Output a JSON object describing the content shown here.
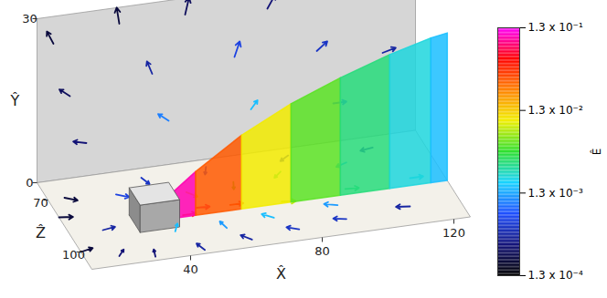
{
  "chart_data": {
    "type": "vector_field",
    "x_label": "X̂",
    "y_label": "Ŷ",
    "z_label": "Ẑ",
    "xlim": [
      10,
      125
    ],
    "ylim": [
      0,
      30
    ],
    "zlim": [
      60,
      110
    ],
    "xticks": [
      40,
      80,
      120
    ],
    "yticks": [
      0,
      30
    ],
    "zticks": [
      70,
      100
    ],
    "colorbar": {
      "label": "Ê",
      "log": true,
      "range": [
        0.00013,
        0.13
      ],
      "ticks": [
        {
          "value": 0.00013,
          "label": "1.3 x 10⁻⁴"
        },
        {
          "value": 0.0013,
          "label": "1.3 x 10⁻³"
        },
        {
          "value": 0.013,
          "label": "1.3 x 10⁻²"
        },
        {
          "value": 0.13,
          "label": "1.3 x 10⁻¹"
        }
      ]
    },
    "obstacle": {
      "x": [
        30,
        42
      ],
      "y": [
        0,
        5
      ],
      "z": [
        84,
        94
      ]
    },
    "slice": {
      "z": 89,
      "x": [
        42,
        55,
        70,
        85,
        100,
        115,
        125
      ],
      "top": [
        5,
        11,
        16,
        20,
        23,
        26,
        27
      ],
      "E": [
        0.1,
        0.03,
        0.01,
        0.005,
        0.003,
        0.002,
        0.0015
      ]
    },
    "vectors": {
      "x": [
        10,
        10,
        15,
        20,
        30,
        45,
        60,
        75,
        90,
        110,
        40,
        55,
        70,
        90,
        45,
        50,
        60,
        75,
        95,
        115,
        50,
        65,
        80,
        100,
        30,
        40,
        60,
        85,
        110,
        20,
        15,
        35,
        55,
        80,
        105,
        20,
        45,
        70,
        95,
        115,
        25,
        50,
        75,
        100
      ],
      "y": [
        0,
        0,
        0,
        0,
        0,
        0,
        0,
        0,
        0,
        0,
        0,
        0,
        0,
        0,
        0,
        0,
        0,
        0,
        0,
        0,
        0,
        0,
        0,
        0,
        0,
        0,
        0,
        0,
        0,
        0,
        25,
        27,
        27,
        26,
        26,
        15,
        17,
        18,
        17,
        15,
        6,
        8,
        8,
        7
      ],
      "z": [
        100,
        80,
        70,
        105,
        108,
        108,
        106,
        104,
        102,
        100,
        96,
        98,
        96,
        94,
        88,
        85,
        86,
        88,
        86,
        85,
        76,
        74,
        72,
        72,
        72,
        65,
        64,
        64,
        66,
        90,
        60,
        60,
        60,
        60,
        60,
        60,
        60,
        60,
        60,
        60,
        60,
        60,
        60,
        60
      ],
      "u": [
        1,
        1,
        0.8,
        0.6,
        0.2,
        -0.3,
        -0.6,
        -0.8,
        -0.9,
        -1,
        0.5,
        -0.2,
        -0.7,
        -0.9,
        1,
        1,
        1,
        1,
        1,
        1,
        0.6,
        -0.3,
        -0.7,
        -0.9,
        0.8,
        0.3,
        -0.4,
        -0.8,
        -1,
        1,
        -0.5,
        -0.2,
        0.3,
        0.6,
        0.8,
        -0.8,
        -0.4,
        0.4,
        0.8,
        1,
        -1,
        -0.8,
        0.5,
        1
      ],
      "v": [
        0,
        0,
        0,
        0,
        0,
        0,
        0,
        0,
        0,
        0,
        0,
        0,
        0,
        0,
        0,
        0,
        0,
        0,
        0,
        0,
        0,
        0,
        0,
        0,
        0,
        0,
        0,
        0,
        0,
        0,
        0.8,
        1,
        1,
        0.8,
        0.6,
        0.5,
        0.8,
        0.9,
        0.5,
        0.2,
        0.2,
        0.5,
        0.5,
        0
      ],
      "w": [
        -0.3,
        0.2,
        0.6,
        -0.8,
        -1,
        -1,
        -0.8,
        -0.5,
        -0.3,
        -0.2,
        -1,
        -1,
        -0.7,
        -0.4,
        0,
        0.1,
        0,
        0.2,
        0.1,
        0,
        0.8,
        1,
        0.7,
        0.4,
        0.6,
        1,
        1,
        0.6,
        0.2,
        -0.2,
        0,
        0,
        0,
        0,
        0,
        0,
        0,
        0,
        0,
        0,
        0,
        0,
        0,
        0
      ],
      "E": [
        0.0002,
        0.0002,
        0.0002,
        0.0003,
        0.0003,
        0.0004,
        0.0004,
        0.0005,
        0.0005,
        0.0004,
        0.0015,
        0.0012,
        0.0015,
        0.0012,
        0.03,
        0.08,
        0.04,
        0.008,
        0.003,
        0.002,
        0.01,
        0.005,
        0.003,
        0.0015,
        0.0006,
        0.0005,
        0.0006,
        0.0005,
        0.0004,
        0.0004,
        0.0002,
        0.0002,
        0.00025,
        0.0003,
        0.0003,
        0.00025,
        0.0004,
        0.0006,
        0.0005,
        0.0004,
        0.0003,
        0.001,
        0.0015,
        0.0008
      ]
    }
  }
}
